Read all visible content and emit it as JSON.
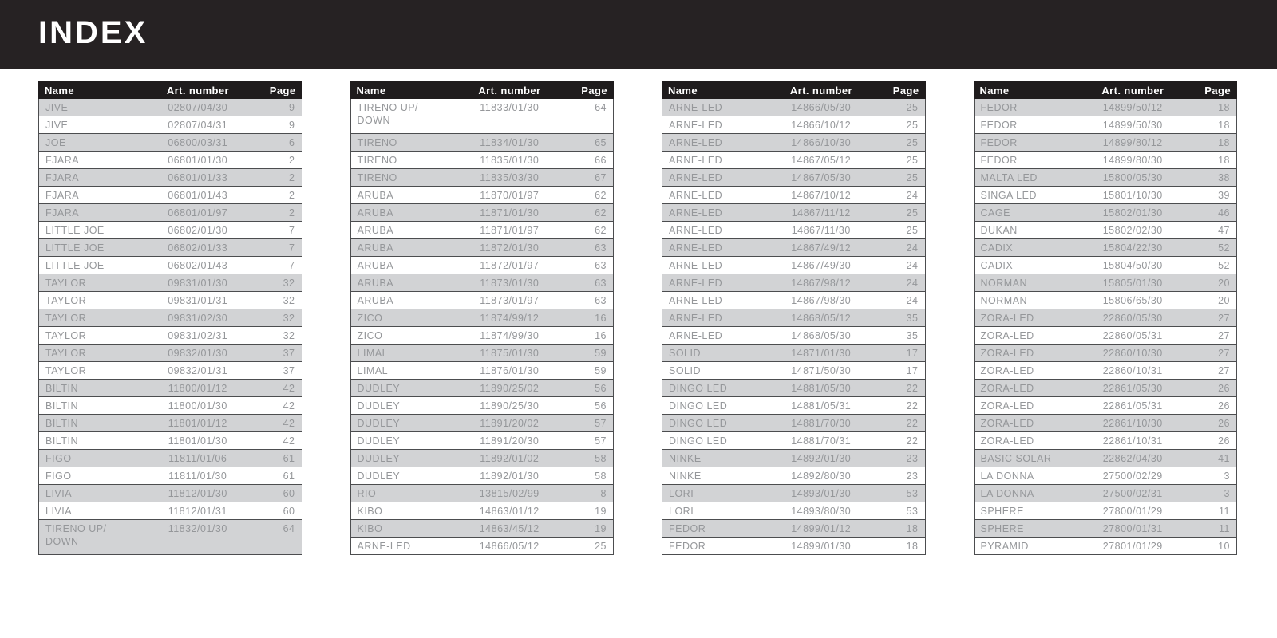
{
  "page_title": "INDEX",
  "colors": {
    "band_bg": "#262223",
    "table_header_bg": "#1f1c1d",
    "row_gray": "#d2d3d5",
    "row_white": "#ffffff",
    "row_border": "#4c4d4f",
    "row_text": "#95979a",
    "header_text": "#ffffff"
  },
  "table_headers": {
    "name": "Name",
    "art": "Art. number",
    "page": "Page"
  },
  "tables": [
    {
      "gray_parity": 0,
      "rows": [
        {
          "name": "JIVE",
          "art": "02807/04/30",
          "page": "9"
        },
        {
          "name": "JIVE",
          "art": "02807/04/31",
          "page": "9"
        },
        {
          "name": "JOE",
          "art": "06800/03/31",
          "page": "6"
        },
        {
          "name": "FJARA",
          "art": "06801/01/30",
          "page": "2"
        },
        {
          "name": "FJARA",
          "art": "06801/01/33",
          "page": "2"
        },
        {
          "name": "FJARA",
          "art": "06801/01/43",
          "page": "2"
        },
        {
          "name": "FJARA",
          "art": "06801/01/97",
          "page": "2"
        },
        {
          "name": "LITTLE JOE",
          "art": "06802/01/30",
          "page": "7"
        },
        {
          "name": "LITTLE JOE",
          "art": "06802/01/33",
          "page": "7"
        },
        {
          "name": "LITTLE JOE",
          "art": "06802/01/43",
          "page": "7"
        },
        {
          "name": "TAYLOR",
          "art": "09831/01/30",
          "page": "32"
        },
        {
          "name": "TAYLOR",
          "art": "09831/01/31",
          "page": "32"
        },
        {
          "name": "TAYLOR",
          "art": "09831/02/30",
          "page": "32"
        },
        {
          "name": "TAYLOR",
          "art": "09831/02/31",
          "page": "32"
        },
        {
          "name": "TAYLOR",
          "art": "09832/01/30",
          "page": "37"
        },
        {
          "name": "TAYLOR",
          "art": "09832/01/31",
          "page": "37"
        },
        {
          "name": "BILTIN",
          "art": "11800/01/12",
          "page": "42"
        },
        {
          "name": "BILTIN",
          "art": "11800/01/30",
          "page": "42"
        },
        {
          "name": "BILTIN",
          "art": "11801/01/12",
          "page": "42"
        },
        {
          "name": "BILTIN",
          "art": "11801/01/30",
          "page": "42"
        },
        {
          "name": "FIGO",
          "art": "11811/01/06",
          "page": "61"
        },
        {
          "name": "FIGO",
          "art": "11811/01/30",
          "page": "61"
        },
        {
          "name": "LIVIA",
          "art": "11812/01/30",
          "page": "60"
        },
        {
          "name": "LIVIA",
          "art": "11812/01/31",
          "page": "60"
        },
        {
          "name": "TIRENO UP/DOWN",
          "art": "11832/01/30",
          "page": "64",
          "tall": true
        }
      ]
    },
    {
      "gray_parity": 1,
      "rows": [
        {
          "name": "TIRENO UP/DOWN",
          "art": "11833/01/30",
          "page": "64",
          "tall": true
        },
        {
          "name": "TIRENO",
          "art": "11834/01/30",
          "page": "65"
        },
        {
          "name": "TIRENO",
          "art": "11835/01/30",
          "page": "66"
        },
        {
          "name": "TIRENO",
          "art": "11835/03/30",
          "page": "67"
        },
        {
          "name": "ARUBA",
          "art": "11870/01/97",
          "page": "62"
        },
        {
          "name": "ARUBA",
          "art": "11871/01/30",
          "page": "62"
        },
        {
          "name": "ARUBA",
          "art": "11871/01/97",
          "page": "62"
        },
        {
          "name": "ARUBA",
          "art": "11872/01/30",
          "page": "63"
        },
        {
          "name": "ARUBA",
          "art": "11872/01/97",
          "page": "63"
        },
        {
          "name": "ARUBA",
          "art": "11873/01/30",
          "page": "63"
        },
        {
          "name": "ARUBA",
          "art": "11873/01/97",
          "page": "63"
        },
        {
          "name": "ZICO",
          "art": "11874/99/12",
          "page": "16"
        },
        {
          "name": "ZICO",
          "art": "11874/99/30",
          "page": "16"
        },
        {
          "name": "LIMAL",
          "art": "11875/01/30",
          "page": "59"
        },
        {
          "name": "LIMAL",
          "art": "11876/01/30",
          "page": "59"
        },
        {
          "name": "DUDLEY",
          "art": "11890/25/02",
          "page": "56"
        },
        {
          "name": "DUDLEY",
          "art": "11890/25/30",
          "page": "56"
        },
        {
          "name": "DUDLEY",
          "art": "11891/20/02",
          "page": "57"
        },
        {
          "name": "DUDLEY",
          "art": "11891/20/30",
          "page": "57"
        },
        {
          "name": "DUDLEY",
          "art": "11892/01/02",
          "page": "58"
        },
        {
          "name": "DUDLEY",
          "art": "11892/01/30",
          "page": "58"
        },
        {
          "name": "RIO",
          "art": "13815/02/99",
          "page": "8"
        },
        {
          "name": "KIBO",
          "art": "14863/01/12",
          "page": "19"
        },
        {
          "name": "KIBO",
          "art": "14863/45/12",
          "page": "19"
        },
        {
          "name": "ARNE-LED",
          "art": "14866/05/12",
          "page": "25"
        }
      ]
    },
    {
      "gray_parity": 0,
      "rows": [
        {
          "name": "ARNE-LED",
          "art": "14866/05/30",
          "page": "25"
        },
        {
          "name": "ARNE-LED",
          "art": "14866/10/12",
          "page": "25"
        },
        {
          "name": "ARNE-LED",
          "art": "14866/10/30",
          "page": "25"
        },
        {
          "name": "ARNE-LED",
          "art": "14867/05/12",
          "page": "25"
        },
        {
          "name": "ARNE-LED",
          "art": "14867/05/30",
          "page": "25"
        },
        {
          "name": "ARNE-LED",
          "art": "14867/10/12",
          "page": "24"
        },
        {
          "name": "ARNE-LED",
          "art": "14867/11/12",
          "page": "25"
        },
        {
          "name": "ARNE-LED",
          "art": "14867/11/30",
          "page": "25"
        },
        {
          "name": "ARNE-LED",
          "art": "14867/49/12",
          "page": "24"
        },
        {
          "name": "ARNE-LED",
          "art": "14867/49/30",
          "page": "24"
        },
        {
          "name": "ARNE-LED",
          "art": "14867/98/12",
          "page": "24"
        },
        {
          "name": "ARNE-LED",
          "art": "14867/98/30",
          "page": "24"
        },
        {
          "name": "ARNE-LED",
          "art": "14868/05/12",
          "page": "35"
        },
        {
          "name": "ARNE-LED",
          "art": "14868/05/30",
          "page": "35"
        },
        {
          "name": "SOLID",
          "art": "14871/01/30",
          "page": "17"
        },
        {
          "name": "SOLID",
          "art": "14871/50/30",
          "page": "17"
        },
        {
          "name": "DINGO LED",
          "art": "14881/05/30",
          "page": "22"
        },
        {
          "name": "DINGO LED",
          "art": "14881/05/31",
          "page": "22"
        },
        {
          "name": "DINGO LED",
          "art": "14881/70/30",
          "page": "22"
        },
        {
          "name": "DINGO LED",
          "art": "14881/70/31",
          "page": "22"
        },
        {
          "name": "NINKE",
          "art": "14892/01/30",
          "page": "23"
        },
        {
          "name": "NINKE",
          "art": "14892/80/30",
          "page": "23"
        },
        {
          "name": "LORI",
          "art": "14893/01/30",
          "page": "53"
        },
        {
          "name": "LORI",
          "art": "14893/80/30",
          "page": "53"
        },
        {
          "name": "FEDOR",
          "art": "14899/01/12",
          "page": "18"
        },
        {
          "name": "FEDOR",
          "art": "14899/01/30",
          "page": "18"
        }
      ]
    },
    {
      "gray_parity": 0,
      "rows": [
        {
          "name": "FEDOR",
          "art": "14899/50/12",
          "page": "18"
        },
        {
          "name": "FEDOR",
          "art": "14899/50/30",
          "page": "18"
        },
        {
          "name": "FEDOR",
          "art": "14899/80/12",
          "page": "18"
        },
        {
          "name": "FEDOR",
          "art": "14899/80/30",
          "page": "18"
        },
        {
          "name": "MALTA LED",
          "art": "15800/05/30",
          "page": "38"
        },
        {
          "name": "SINGA LED",
          "art": "15801/10/30",
          "page": "39"
        },
        {
          "name": "CAGE",
          "art": "15802/01/30",
          "page": "46"
        },
        {
          "name": "DUKAN",
          "art": "15802/02/30",
          "page": "47"
        },
        {
          "name": "CADIX",
          "art": "15804/22/30",
          "page": "52"
        },
        {
          "name": "CADIX",
          "art": "15804/50/30",
          "page": "52"
        },
        {
          "name": "NORMAN",
          "art": "15805/01/30",
          "page": "20"
        },
        {
          "name": "NORMAN",
          "art": "15806/65/30",
          "page": "20"
        },
        {
          "name": "ZORA-LED",
          "art": "22860/05/30",
          "page": "27"
        },
        {
          "name": "ZORA-LED",
          "art": "22860/05/31",
          "page": "27"
        },
        {
          "name": "ZORA-LED",
          "art": "22860/10/30",
          "page": "27"
        },
        {
          "name": "ZORA-LED",
          "art": "22860/10/31",
          "page": "27"
        },
        {
          "name": "ZORA-LED",
          "art": "22861/05/30",
          "page": "26"
        },
        {
          "name": "ZORA-LED",
          "art": "22861/05/31",
          "page": "26"
        },
        {
          "name": "ZORA-LED",
          "art": "22861/10/30",
          "page": "26"
        },
        {
          "name": "ZORA-LED",
          "art": "22861/10/31",
          "page": "26"
        },
        {
          "name": "BASIC SOLAR",
          "art": "22862/04/30",
          "page": "41"
        },
        {
          "name": "LA DONNA",
          "art": "27500/02/29",
          "page": "3"
        },
        {
          "name": "LA DONNA",
          "art": "27500/02/31",
          "page": "3"
        },
        {
          "name": "SPHERE",
          "art": "27800/01/29",
          "page": "11"
        },
        {
          "name": "SPHERE",
          "art": "27800/01/31",
          "page": "11"
        },
        {
          "name": "PYRAMID",
          "art": "27801/01/29",
          "page": "10"
        }
      ]
    }
  ]
}
